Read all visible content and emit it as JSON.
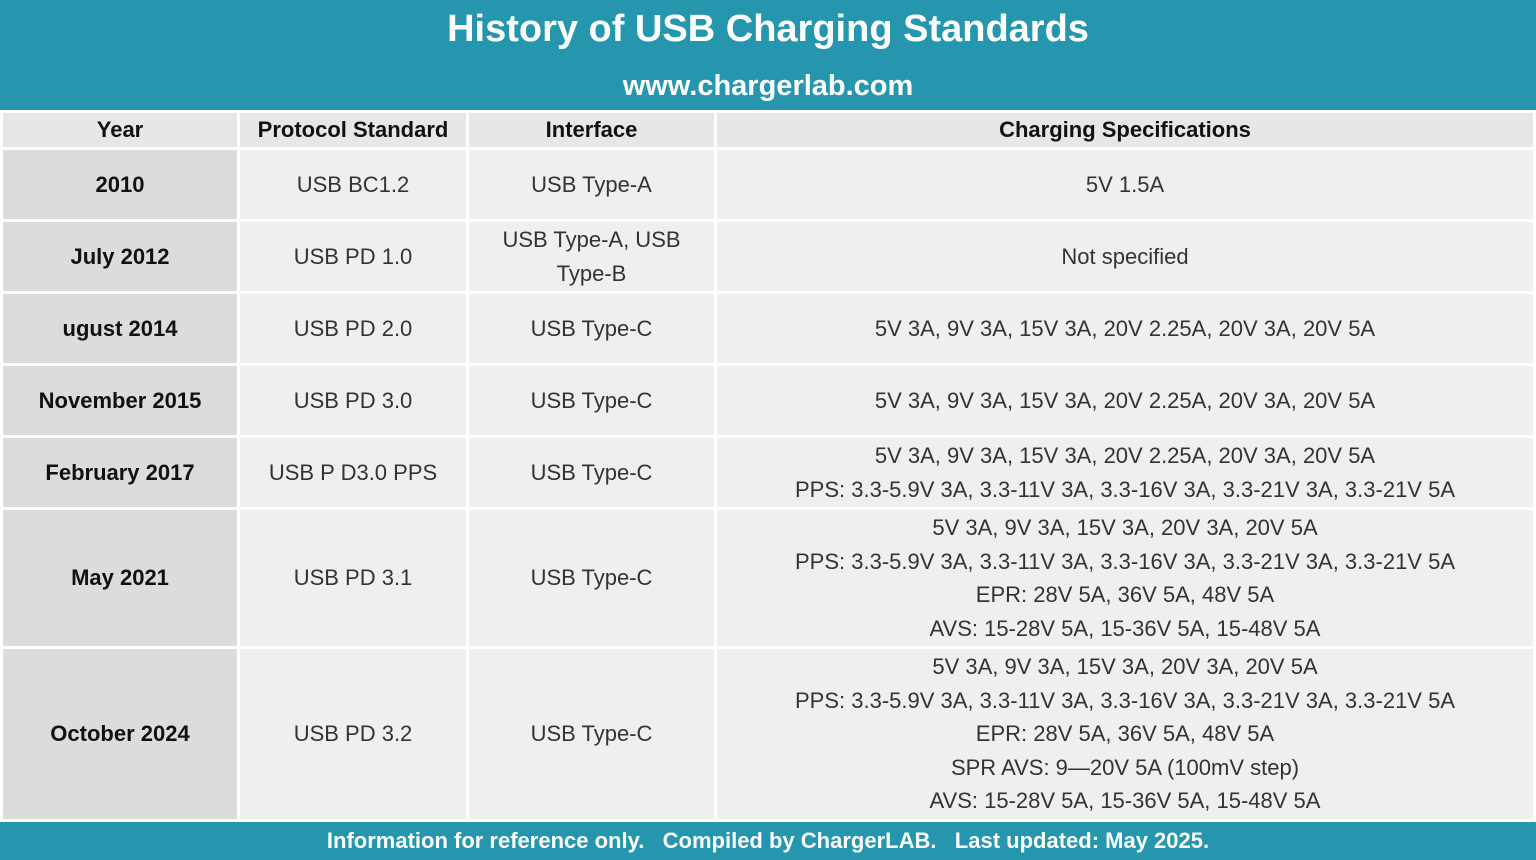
{
  "header": {
    "title": "History of USB Charging Standards",
    "subtitle": "www.chargerlab.com"
  },
  "table": {
    "columns": [
      "Year",
      "Protocol Standard",
      "Interface",
      "Charging Specifications"
    ],
    "rows": [
      {
        "year": "2010",
        "protocol": "USB BC1.2",
        "interface": "USB Type-A",
        "specs": [
          "5V 1.5A"
        ]
      },
      {
        "year": "July 2012",
        "protocol": "USB PD 1.0",
        "interface": "USB Type-A, USB Type-B",
        "specs": [
          "Not specified"
        ]
      },
      {
        "year": "ugust 2014",
        "protocol": "USB PD 2.0",
        "interface": "USB Type-C",
        "specs": [
          "5V 3A, 9V 3A, 15V 3A, 20V 2.25A, 20V 3A, 20V 5A"
        ]
      },
      {
        "year": "November 2015",
        "protocol": "USB PD 3.0",
        "interface": "USB Type-C",
        "specs": [
          "5V 3A, 9V 3A, 15V 3A, 20V 2.25A, 20V 3A, 20V 5A"
        ]
      },
      {
        "year": "February 2017",
        "protocol": "USB P D3.0 PPS",
        "interface": "USB Type-C",
        "specs": [
          "5V 3A, 9V 3A, 15V 3A, 20V 2.25A, 20V 3A, 20V 5A",
          "PPS: 3.3-5.9V 3A, 3.3-11V 3A, 3.3-16V 3A, 3.3-21V 3A, 3.3-21V 5A"
        ]
      },
      {
        "year": "May 2021",
        "protocol": "USB PD 3.1",
        "interface": "USB Type-C",
        "specs": [
          "5V 3A, 9V 3A, 15V 3A, 20V 3A, 20V 5A",
          "PPS: 3.3-5.9V 3A, 3.3-11V 3A, 3.3-16V 3A, 3.3-21V 3A, 3.3-21V 5A",
          "EPR: 28V 5A, 36V 5A, 48V 5A",
          "AVS: 15-28V 5A, 15-36V 5A, 15-48V 5A"
        ]
      },
      {
        "year": "October 2024",
        "protocol": "USB PD 3.2",
        "interface": "USB Type-C",
        "specs": [
          "5V 3A, 9V 3A, 15V 3A, 20V 3A, 20V 5A",
          "PPS: 3.3-5.9V 3A, 3.3-11V 3A, 3.3-16V 3A, 3.3-21V 3A, 3.3-21V 5A",
          "EPR: 28V 5A, 36V 5A, 48V 5A",
          "SPR AVS: 9—20V 5A (100mV step)",
          "AVS: 15-28V 5A, 15-36V 5A, 15-48V 5A"
        ]
      }
    ]
  },
  "footer": {
    "text": "Information for reference only.   Compiled by ChargerLAB.   Last updated: May 2025."
  },
  "colors": {
    "banner": "#2596ae",
    "header_cell": "#e7e7e7",
    "year_cell": "#dcdcdc",
    "data_cell": "#efefef"
  }
}
